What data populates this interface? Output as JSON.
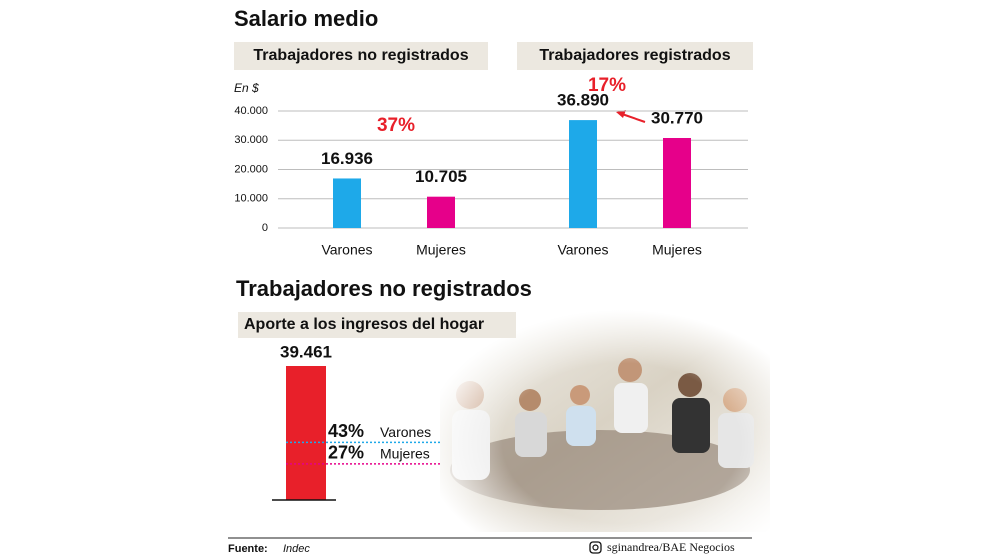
{
  "chart_data": [
    {
      "type": "bar",
      "title": "Salario medio",
      "y_label": "En $",
      "ylim": [
        0,
        40000
      ],
      "yticks": [
        0,
        {
          "value": 10000,
          "label": "10.000"
        },
        {
          "value": 20000,
          "label": "20.000"
        },
        {
          "value": 30000,
          "label": "30.000"
        },
        {
          "value": 40000,
          "label": "40.000"
        }
      ],
      "grid": true,
      "colors": [
        "#1ea9e9",
        "#e6008a"
      ],
      "panels": [
        {
          "subtitle": "Trabajadores no registrados",
          "categories": [
            "Varones",
            "Mujeres"
          ],
          "values": [
            16936,
            10705
          ],
          "value_labels": [
            "16.936",
            "10.705"
          ],
          "annotation": "37%"
        },
        {
          "subtitle": "Trabajadores registrados",
          "categories": [
            "Varones",
            "Mujeres"
          ],
          "values": [
            36890,
            30770
          ],
          "value_labels": [
            "36.890",
            "30.770"
          ],
          "annotation": "17%"
        }
      ]
    },
    {
      "type": "share-bar",
      "title": "Trabajadores no registrados",
      "subtitle": "Aporte a los ingresos del hogar",
      "values": [
        39461
      ],
      "value_labels": [
        "39.461"
      ],
      "color": "#e8202a",
      "shares": {
        "categories": [
          "Varones",
          "Mujeres"
        ],
        "values": [
          43,
          27
        ],
        "value_labels": [
          "43%",
          "27%"
        ],
        "colors": [
          "#1ea9e9",
          "#e6008a"
        ]
      }
    }
  ],
  "footer": {
    "source_label": "Fuente:",
    "source": "Indec",
    "credit": "sginandrea/BAE Negocios"
  }
}
